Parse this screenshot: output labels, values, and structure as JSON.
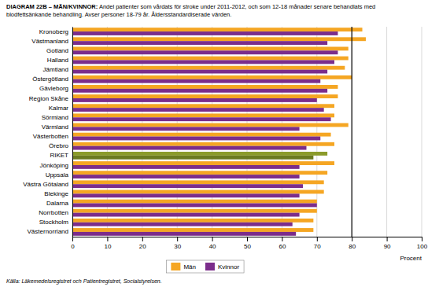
{
  "chart_data": {
    "type": "bar",
    "orientation": "horizontal",
    "title": "DIAGRAM 22B – MÄN/KVINNOR: Andel patienter som vårdats för stroke under 2011-2012, och som 12-18 månader senare behandlats med\nblodfettsänkande behandling. Avser personer 18-79 år. Åldersstandardiserade värden.",
    "x_label": "Procent",
    "source": "Källa: Läkemedelsregistret och Patientregistret, Socialstyrelsen.",
    "categories": [
      "Kronoberg",
      "Västmanland",
      "Gotland",
      "Halland",
      "Jämtland",
      "Östergötland",
      "Gävleborg",
      "Region Skåne",
      "Kalmar",
      "Sörmland",
      "Värmland",
      "Västerbotten",
      "Örebro",
      "RIKET",
      "Jönköping",
      "Uppsala",
      "Västra Götaland",
      "Blekinge",
      "Dalarna",
      "Norrbotten",
      "Stockholm",
      "Västernorrland"
    ],
    "series": [
      {
        "name": "Män",
        "color": "#F5A623",
        "colors": [
          "#F5A623",
          "#F5A623",
          "#F5A623",
          "#F5A623",
          "#F5A623",
          "#F5A623",
          "#F5A623",
          "#F5A623",
          "#F5A623",
          "#F5A623",
          "#F5A623",
          "#F5A623",
          "#F5A623",
          "#8B9B2A",
          "#F5A623",
          "#F5A623",
          "#F5A623",
          "#F5A623",
          "#F5A623",
          "#F5A623",
          "#F5A623",
          "#F5A623"
        ],
        "values": [
          83,
          84,
          79,
          79,
          78,
          80,
          76,
          76,
          75,
          75,
          79,
          74,
          75,
          73,
          75,
          73,
          72,
          72,
          70,
          70,
          69,
          69
        ]
      },
      {
        "name": "Kvinnor",
        "color": "#7B2D8B",
        "colors": [
          "#7B2D8B",
          "#7B2D8B",
          "#7B2D8B",
          "#7B2D8B",
          "#7B2D8B",
          "#7B2D8B",
          "#7B2D8B",
          "#7B2D8B",
          "#7B2D8B",
          "#7B2D8B",
          "#7B2D8B",
          "#7B2D8B",
          "#7B2D8B",
          "#6B7A20",
          "#7B2D8B",
          "#7B2D8B",
          "#7B2D8B",
          "#7B2D8B",
          "#7B2D8B",
          "#7B2D8B",
          "#7B2D8B",
          "#7B2D8B"
        ],
        "values": [
          76,
          73,
          76,
          75,
          73,
          71,
          73,
          70,
          72,
          74,
          65,
          71,
          67,
          69,
          65,
          65,
          66,
          65,
          70,
          65,
          63,
          64
        ]
      }
    ],
    "reference_line": 80,
    "xlim": [
      0,
      100
    ],
    "xticks": [
      0,
      10,
      20,
      30,
      40,
      50,
      60,
      70,
      80,
      90,
      100
    ],
    "grid": true,
    "legend": "bottom"
  }
}
